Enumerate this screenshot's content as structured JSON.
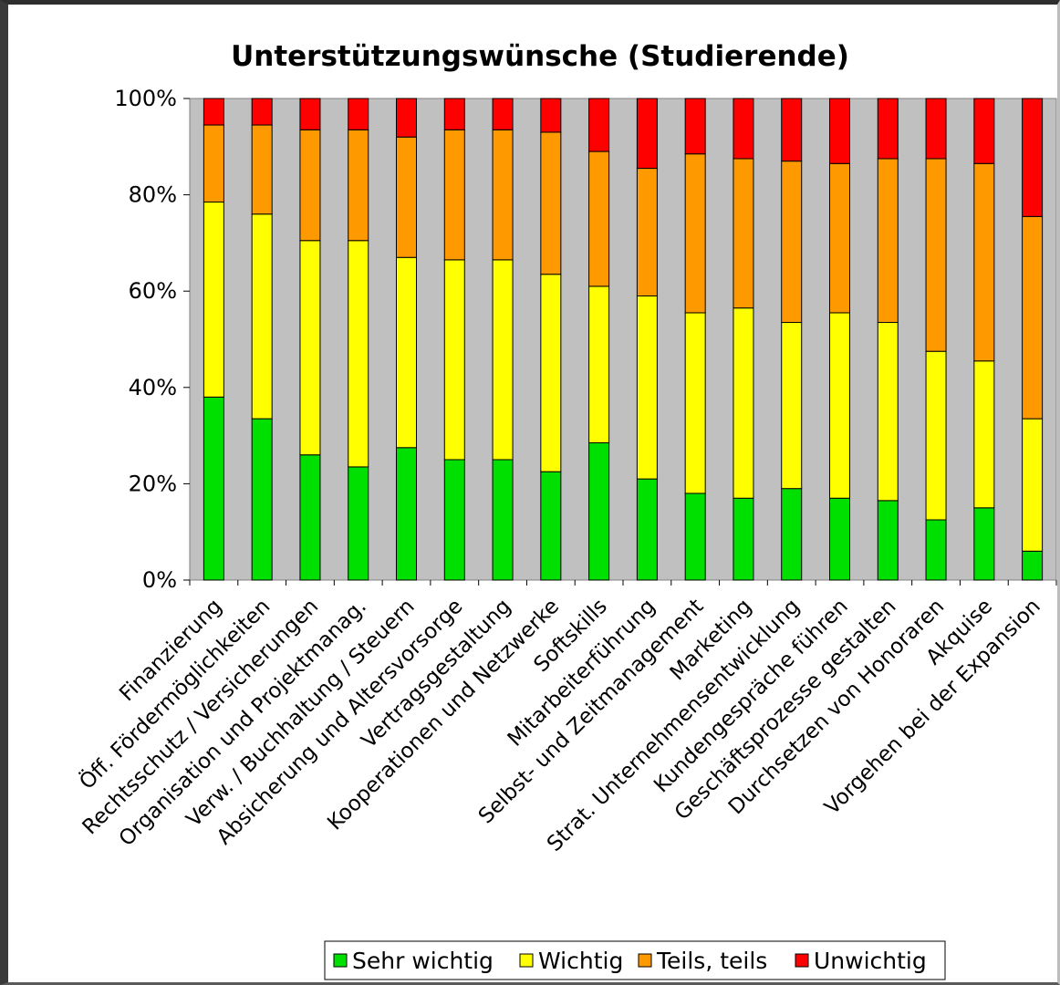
{
  "chart_data": {
    "type": "bar",
    "stacked": "percent",
    "title": "Unterstützungswünsche (Studierende)",
    "xlabel": "",
    "ylabel": "",
    "ylim": [
      0,
      100
    ],
    "yticks": [
      "0%",
      "20%",
      "40%",
      "60%",
      "80%",
      "100%"
    ],
    "grid": false,
    "plot_background": "#c0c0c0",
    "legend_position": "bottom",
    "categories": [
      "Finanzierung",
      "Öff. Fördermöglichkeiten",
      "Rechtsschutz / Versicherungen",
      "Organisation und Projektmanag.",
      "Verw. / Buchhaltung / Steuern",
      "Absicherung und Altersvorsorge",
      "Vertragsgestaltung",
      "Kooperationen und Netzwerke",
      "Softskills",
      "Mitarbeiterführung",
      "Selbst- und Zeitmanagement",
      "Marketing",
      "Strat. Unternehmensentwicklung",
      "Kundengespräche führen",
      "Geschäftsprozesse gestalten",
      "Durchsetzen von Honoraren",
      "Akquise",
      "Vorgehen bei der Expansion"
    ],
    "series": [
      {
        "name": "Sehr wichtig",
        "color": "#00e000",
        "values": [
          38,
          33.5,
          26,
          23.5,
          27.5,
          25,
          25,
          22.5,
          28.5,
          21,
          18,
          17,
          19,
          17,
          16.5,
          12.5,
          15,
          6
        ]
      },
      {
        "name": "Wichtig",
        "color": "#ffff00",
        "values": [
          40.5,
          42.5,
          44.5,
          47,
          39.5,
          41.5,
          41.5,
          41,
          32.5,
          38,
          37.5,
          39.5,
          34.5,
          38.5,
          37,
          35,
          30.5,
          27.5
        ]
      },
      {
        "name": "Teils, teils",
        "color": "#ff9900",
        "values": [
          16,
          18.5,
          23,
          23,
          25,
          27,
          27,
          29.5,
          28,
          26.5,
          33,
          31,
          33.5,
          31,
          34,
          40,
          41,
          42
        ]
      },
      {
        "name": "Unwichtig",
        "color": "#ff0000",
        "values": [
          5.5,
          5.5,
          6.5,
          6.5,
          8,
          6.5,
          6.5,
          7,
          11,
          14.5,
          11.5,
          12.5,
          13,
          13.5,
          12.5,
          12.5,
          13.5,
          24.5
        ]
      }
    ]
  }
}
